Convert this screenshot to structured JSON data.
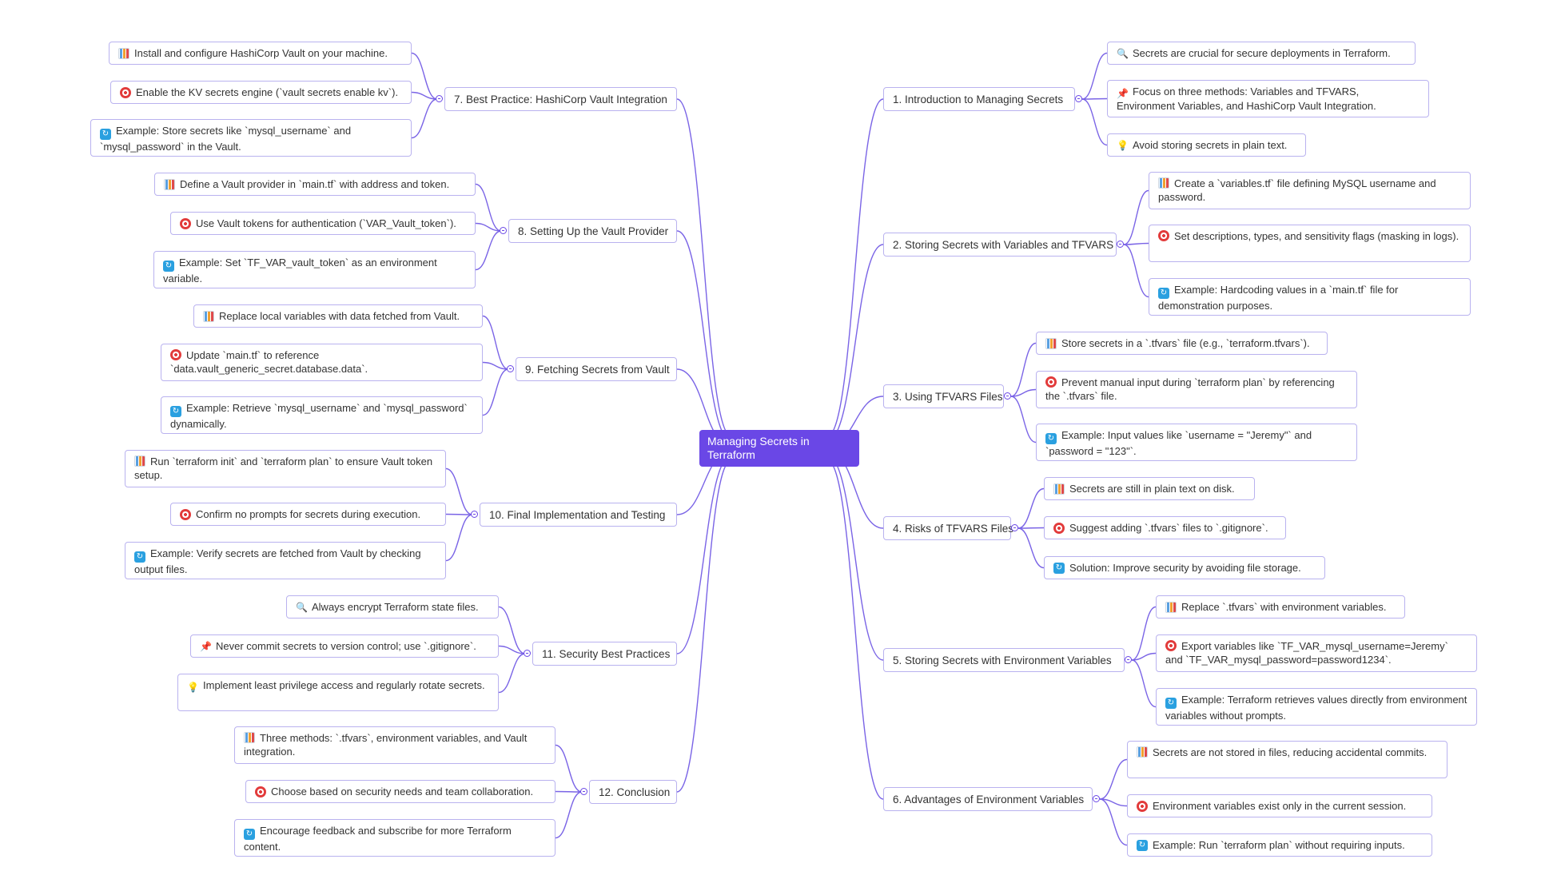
{
  "root": {
    "label": "Managing Secrets in Terraform"
  },
  "branches": [
    {
      "label": "1. Introduction to Managing Secrets",
      "children": [
        {
          "icon": "search-icon",
          "text": "Secrets are crucial for secure deployments in Terraform."
        },
        {
          "icon": "pin-icon",
          "text": "Focus on three methods: Variables and TFVARS, Environment Variables, and HashiCorp Vault Integration."
        },
        {
          "icon": "lightbulb-icon",
          "text": "Avoid storing secrets in plain text."
        }
      ]
    },
    {
      "label": "2. Storing Secrets with Variables and TFVARS",
      "children": [
        {
          "icon": "bar-chart-icon",
          "text": "Create a `variables.tf` file defining MySQL username and password."
        },
        {
          "icon": "target-icon",
          "text": "Set descriptions, types, and sensitivity flags (masking in logs)."
        },
        {
          "icon": "cycle-icon",
          "text": "Example: Hardcoding values in a `main.tf` file for demonstration purposes."
        }
      ]
    },
    {
      "label": "3. Using TFVARS Files",
      "children": [
        {
          "icon": "bar-chart-icon",
          "text": "Store secrets in a `.tfvars` file (e.g., `terraform.tfvars`)."
        },
        {
          "icon": "target-icon",
          "text": "Prevent manual input during `terraform plan` by referencing the `.tfvars` file."
        },
        {
          "icon": "cycle-icon",
          "text": "Example: Input values like `username = \"Jeremy\"` and `password = \"123\"`."
        }
      ]
    },
    {
      "label": "4. Risks of TFVARS Files",
      "children": [
        {
          "icon": "bar-chart-icon",
          "text": "Secrets are still in plain text on disk."
        },
        {
          "icon": "target-icon",
          "text": "Suggest adding `.tfvars` files to `.gitignore`."
        },
        {
          "icon": "cycle-icon",
          "text": "Solution: Improve security by avoiding file storage."
        }
      ]
    },
    {
      "label": "5. Storing Secrets with Environment Variables",
      "children": [
        {
          "icon": "bar-chart-icon",
          "text": "Replace `.tfvars` with environment variables."
        },
        {
          "icon": "target-icon",
          "text": "Export variables like `TF_VAR_mysql_username=Jeremy` and `TF_VAR_mysql_password=password1234`."
        },
        {
          "icon": "cycle-icon",
          "text": "Example: Terraform retrieves values directly from environment variables without prompts."
        }
      ]
    },
    {
      "label": "6. Advantages of Environment Variables",
      "children": [
        {
          "icon": "bar-chart-icon",
          "text": "Secrets are not stored in files, reducing accidental commits."
        },
        {
          "icon": "target-icon",
          "text": "Environment variables exist only in the current session."
        },
        {
          "icon": "cycle-icon",
          "text": "Example: Run `terraform plan` without requiring inputs."
        }
      ]
    },
    {
      "label": "7. Best Practice: HashiCorp Vault Integration",
      "children": [
        {
          "icon": "bar-chart-icon",
          "text": "Install and configure HashiCorp Vault on your machine."
        },
        {
          "icon": "target-icon",
          "text": "Enable the KV secrets engine (`vault secrets enable kv`)."
        },
        {
          "icon": "cycle-icon",
          "text": "Example: Store secrets like `mysql_username` and `mysql_password` in the Vault."
        }
      ]
    },
    {
      "label": "8. Setting Up the Vault Provider",
      "children": [
        {
          "icon": "bar-chart-icon",
          "text": "Define a Vault provider in `main.tf` with address and token."
        },
        {
          "icon": "target-icon",
          "text": "Use Vault tokens for authentication (`VAR_Vault_token`)."
        },
        {
          "icon": "cycle-icon",
          "text": "Example: Set `TF_VAR_vault_token` as an environment variable."
        }
      ]
    },
    {
      "label": "9. Fetching Secrets from Vault",
      "children": [
        {
          "icon": "bar-chart-icon",
          "text": "Replace local variables with data fetched from Vault."
        },
        {
          "icon": "target-icon",
          "text": "Update `main.tf` to reference `data.vault_generic_secret.database.data`."
        },
        {
          "icon": "cycle-icon",
          "text": "Example: Retrieve `mysql_username` and `mysql_password` dynamically."
        }
      ]
    },
    {
      "label": "10. Final Implementation and Testing",
      "children": [
        {
          "icon": "bar-chart-icon",
          "text": "Run `terraform init` and `terraform plan` to ensure Vault token setup."
        },
        {
          "icon": "target-icon",
          "text": "Confirm no prompts for secrets during execution."
        },
        {
          "icon": "cycle-icon",
          "text": "Example: Verify secrets are fetched from Vault by checking output files."
        }
      ]
    },
    {
      "label": "11. Security Best Practices",
      "children": [
        {
          "icon": "search-icon",
          "text": "Always encrypt Terraform state files."
        },
        {
          "icon": "pin-icon",
          "text": "Never commit secrets to version control; use `.gitignore`."
        },
        {
          "icon": "lightbulb-icon",
          "text": "Implement least privilege access and regularly rotate secrets."
        }
      ]
    },
    {
      "label": "12. Conclusion",
      "children": [
        {
          "icon": "bar-chart-icon",
          "text": "Three methods: `.tfvars`, environment variables, and Vault integration."
        },
        {
          "icon": "target-icon",
          "text": "Choose based on security needs and team collaboration."
        },
        {
          "icon": "cycle-icon",
          "text": "Encourage feedback and subscribe for more Terraform content."
        }
      ]
    }
  ]
}
